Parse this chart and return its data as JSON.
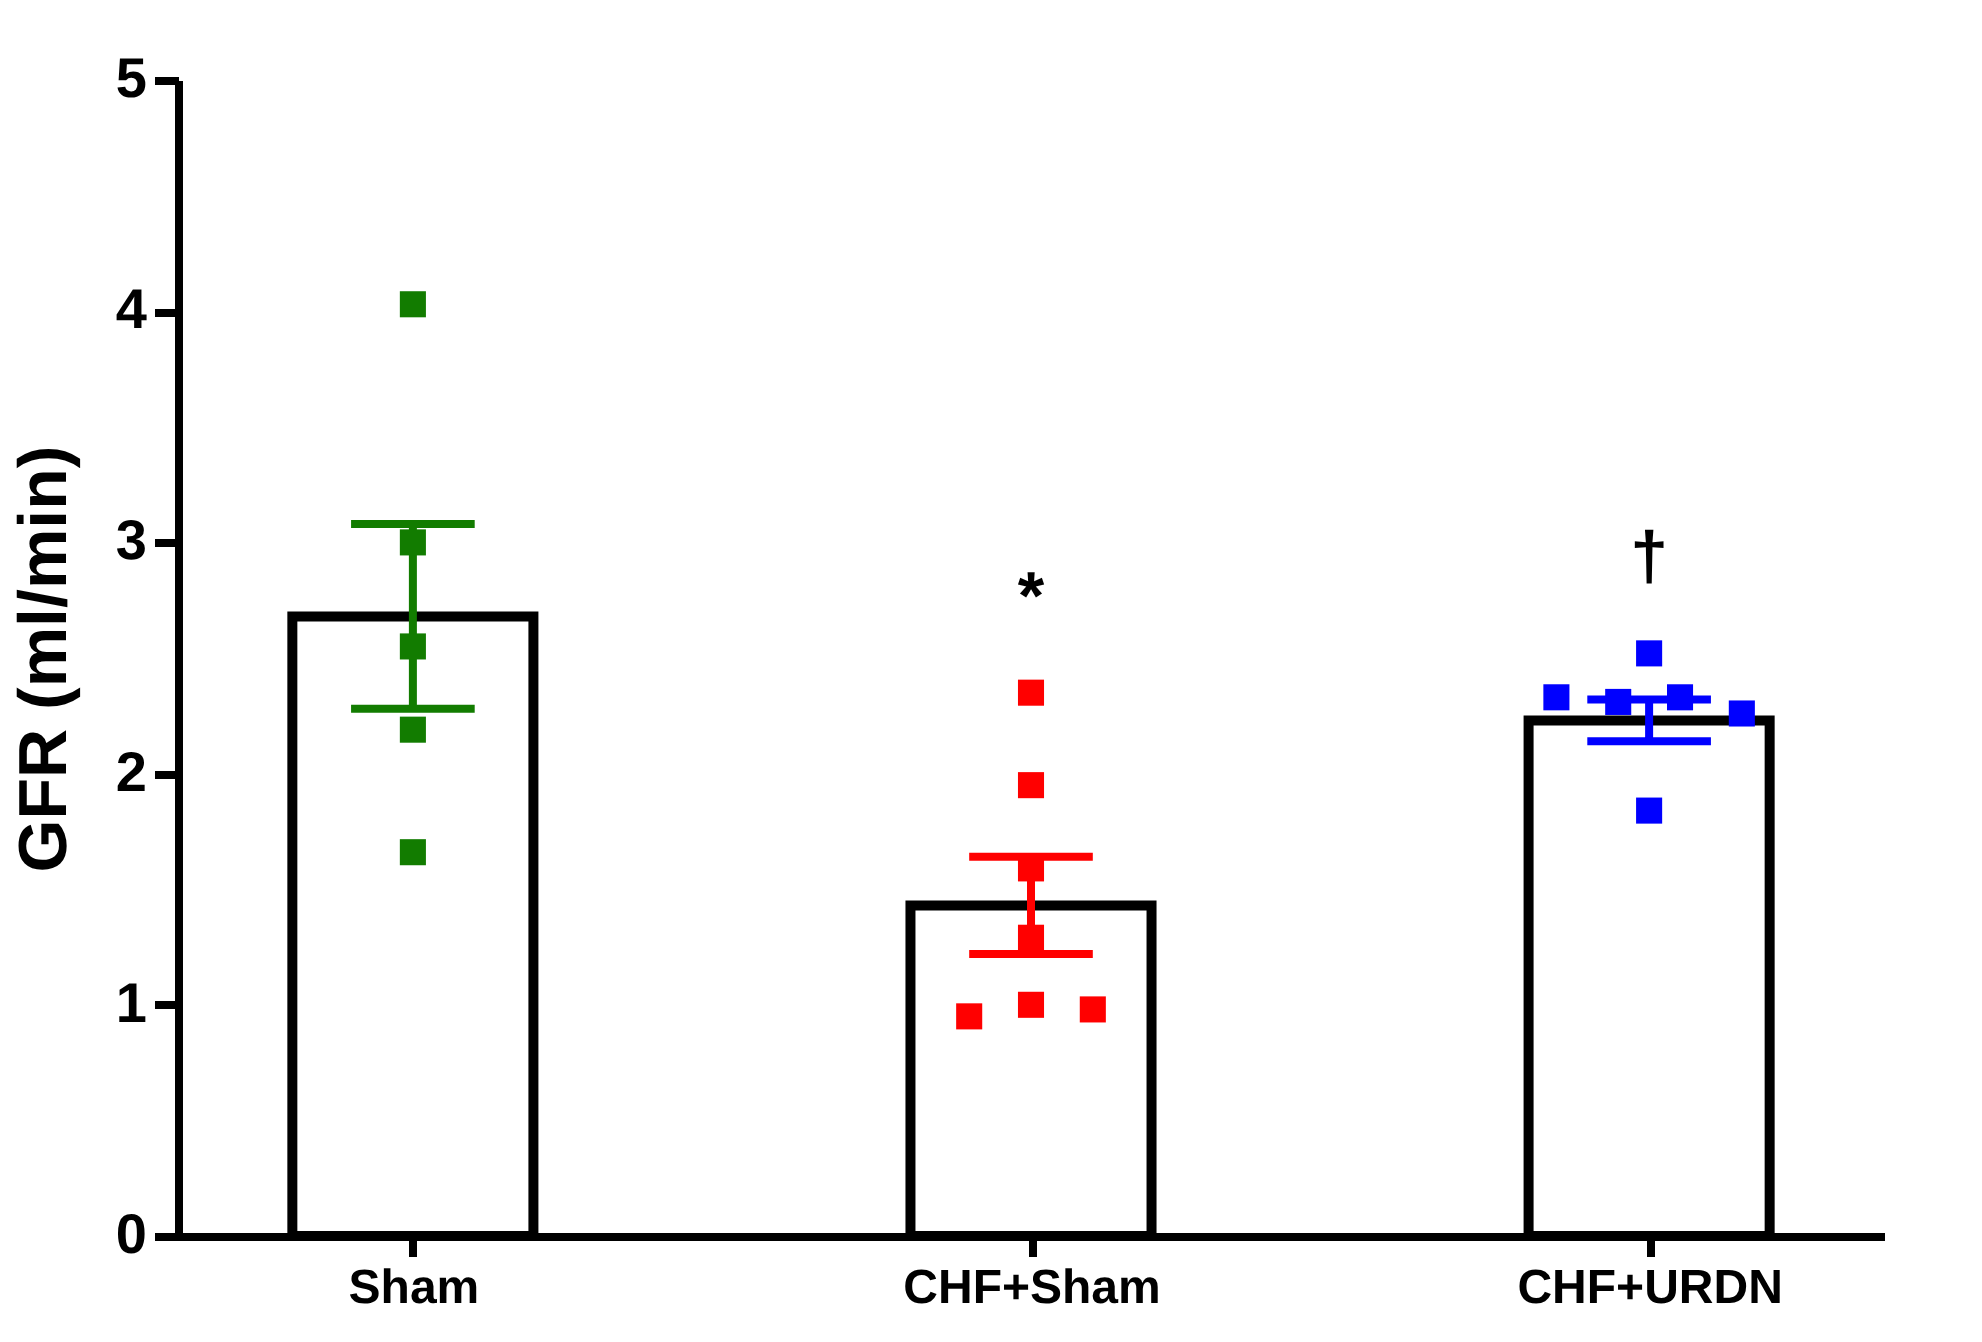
{
  "chart_data": {
    "type": "bar",
    "ylabel": "GFR (ml/min)",
    "categories": [
      "Sham",
      "CHF+Sham",
      "CHF+URDN"
    ],
    "ylim": [
      0,
      5
    ],
    "yticks": [
      0,
      1,
      2,
      3,
      4,
      5
    ],
    "grid": false,
    "series": [
      {
        "color": "#ffffff",
        "values": [
          2.68,
          1.43,
          2.23
        ],
        "errors": [
          0.4,
          0.21,
          0.09
        ]
      },
      {
        "type": "scatter",
        "marker": "square",
        "x": [
          "Sham",
          "Sham",
          "Sham",
          "Sham",
          "Sham",
          "CHF+Sham",
          "CHF+Sham",
          "CHF+Sham",
          "CHF+Sham",
          "CHF+Sham",
          "CHF+Sham",
          "CHF+Sham",
          "CHF+URDN",
          "CHF+URDN",
          "CHF+URDN",
          "CHF+URDN",
          "CHF+URDN",
          "CHF+URDN"
        ],
        "values": [
          4.03,
          3.0,
          2.55,
          2.19,
          1.66,
          2.35,
          1.95,
          1.59,
          1.29,
          0.95,
          1.0,
          0.98,
          2.52,
          2.33,
          2.31,
          2.33,
          2.26,
          1.84
        ],
        "colors": [
          "#127c00",
          "#127c00",
          "#127c00",
          "#127c00",
          "#127c00",
          "#ff0000",
          "#ff0000",
          "#ff0000",
          "#ff0000",
          "#ff0000",
          "#ff0000",
          "#ff0000",
          "#0000ff",
          "#0000ff",
          "#0000ff",
          "#0000ff",
          "#0000ff",
          "#0000ff"
        ]
      }
    ],
    "annotations": [
      "*",
      "†"
    ]
  }
}
